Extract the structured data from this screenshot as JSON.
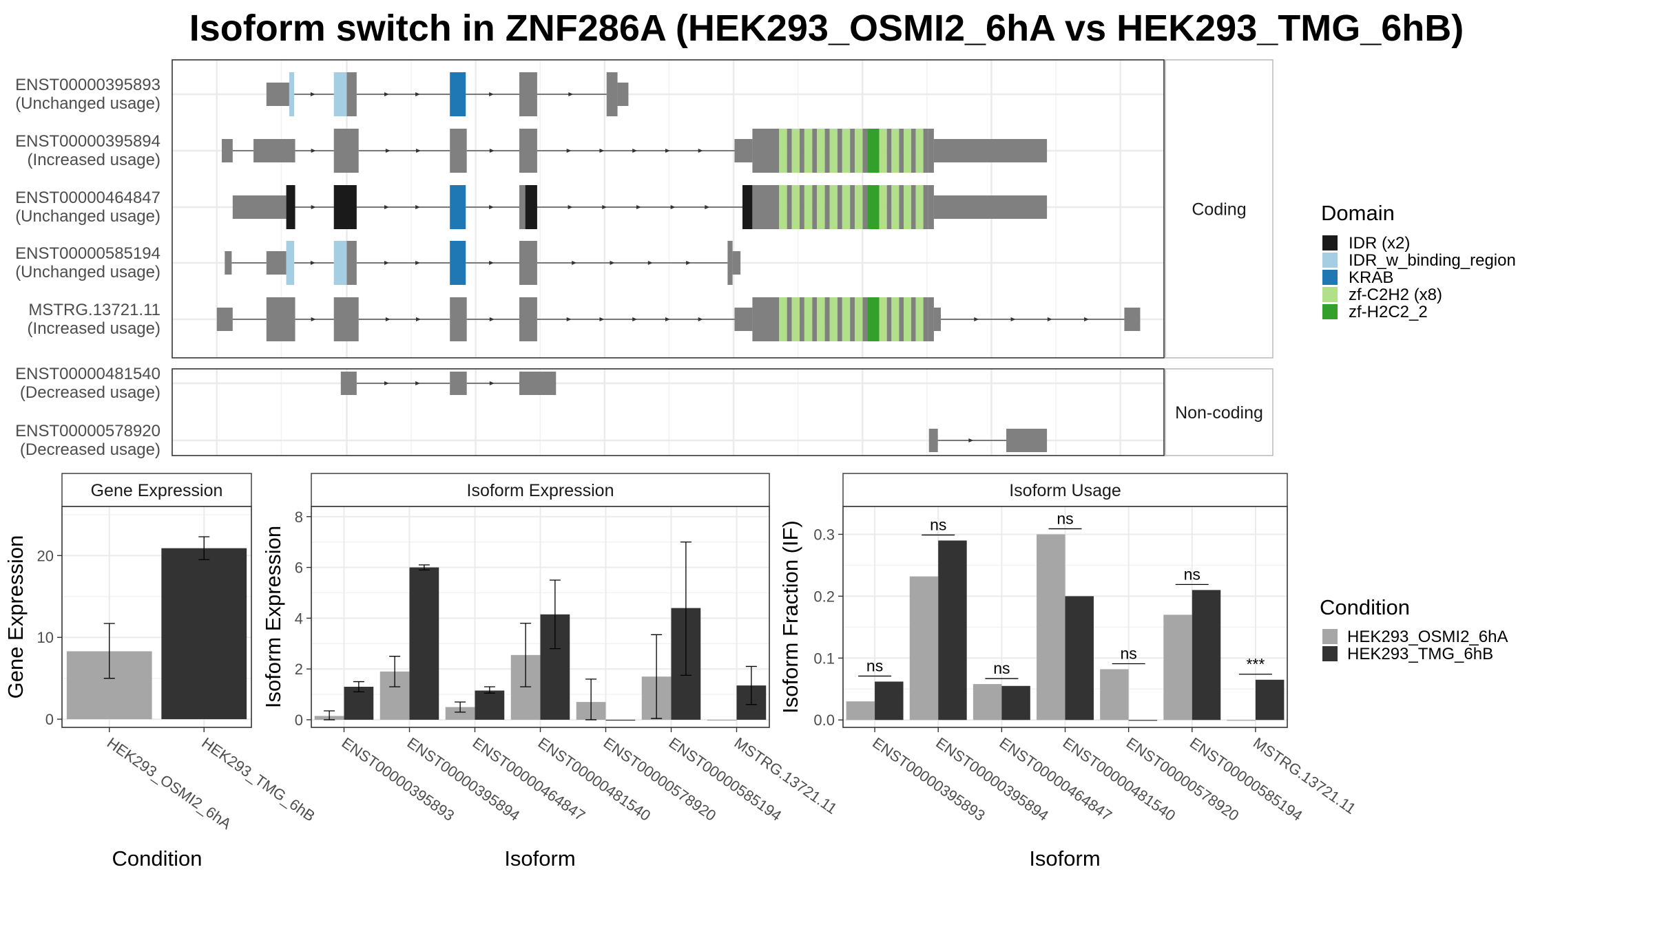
{
  "title": "Isoform switch in ZNF286A (HEK293_OSMI2_6hA vs HEK293_TMG_6hB)",
  "colors": {
    "exon": "#808080",
    "IDR": "#1a1a1a",
    "IDR_w_binding_region": "#a6cee3",
    "KRAB": "#1f78b4",
    "zf-C2H2": "#b2df8a",
    "zf-H2C2_2": "#33a02c",
    "cond1": "#a6a6a6",
    "cond2": "#333333"
  },
  "structure": {
    "groups": [
      {
        "label": "Coding",
        "rows": [
          0,
          1,
          2,
          3,
          4
        ]
      },
      {
        "label": "Non-coding",
        "rows": [
          5,
          6
        ]
      }
    ],
    "transcripts": [
      {
        "id": "ENST00000395893",
        "usage": "(Unchanged usage)",
        "exons": [
          [
            0.095,
            0.118,
            "nc"
          ],
          [
            0.118,
            0.123,
            "IDR_w_binding_region"
          ],
          [
            0.163,
            0.176,
            "IDR_w_binding_region"
          ],
          [
            0.176,
            0.186,
            "cds"
          ],
          [
            0.28,
            0.296,
            "KRAB"
          ],
          [
            0.35,
            0.368,
            "cds"
          ],
          [
            0.438,
            0.449,
            "cds"
          ],
          [
            0.449,
            0.46,
            "nc"
          ]
        ]
      },
      {
        "id": "ENST00000395894",
        "usage": "(Increased usage)",
        "exons": [
          [
            0.05,
            0.061,
            "nc"
          ],
          [
            0.082,
            0.124,
            "nc"
          ],
          [
            0.163,
            0.188,
            "cds"
          ],
          [
            0.28,
            0.297,
            "cds"
          ],
          [
            0.35,
            0.368,
            "cds"
          ],
          [
            0.567,
            0.585,
            "nc"
          ],
          [
            0.585,
            0.612,
            "cds"
          ],
          [
            0.612,
            0.701,
            "zf"
          ],
          [
            0.701,
            0.713,
            "zf-H2C2_2"
          ],
          [
            0.713,
            0.762,
            "zf"
          ],
          [
            0.762,
            0.768,
            "cds"
          ],
          [
            0.768,
            0.882,
            "nc"
          ]
        ]
      },
      {
        "id": "ENST00000464847",
        "usage": "(Unchanged usage)",
        "exons": [
          [
            0.061,
            0.115,
            "nc"
          ],
          [
            0.115,
            0.124,
            "IDR"
          ],
          [
            0.163,
            0.186,
            "IDR"
          ],
          [
            0.28,
            0.296,
            "KRAB"
          ],
          [
            0.35,
            0.356,
            "cds"
          ],
          [
            0.356,
            0.368,
            "IDR"
          ],
          [
            0.575,
            0.585,
            "IDR"
          ],
          [
            0.585,
            0.612,
            "cds"
          ],
          [
            0.612,
            0.701,
            "zf"
          ],
          [
            0.701,
            0.713,
            "zf-H2C2_2"
          ],
          [
            0.713,
            0.762,
            "zf"
          ],
          [
            0.762,
            0.768,
            "cds"
          ],
          [
            0.768,
            0.882,
            "nc"
          ]
        ]
      },
      {
        "id": "ENST00000585194",
        "usage": "(Unchanged usage)",
        "exons": [
          [
            0.053,
            0.06,
            "nc"
          ],
          [
            0.095,
            0.115,
            "nc"
          ],
          [
            0.115,
            0.123,
            "IDR_w_binding_region"
          ],
          [
            0.163,
            0.176,
            "IDR_w_binding_region"
          ],
          [
            0.176,
            0.186,
            "cds"
          ],
          [
            0.28,
            0.296,
            "KRAB"
          ],
          [
            0.35,
            0.368,
            "cds"
          ],
          [
            0.56,
            0.565,
            "cds"
          ],
          [
            0.565,
            0.573,
            "nc"
          ]
        ]
      },
      {
        "id": "MSTRG.13721.11",
        "usage": "(Increased usage)",
        "exons": [
          [
            0.045,
            0.061,
            "nc"
          ],
          [
            0.095,
            0.124,
            "cds"
          ],
          [
            0.163,
            0.188,
            "cds"
          ],
          [
            0.28,
            0.297,
            "cds"
          ],
          [
            0.35,
            0.368,
            "cds"
          ],
          [
            0.567,
            0.585,
            "nc"
          ],
          [
            0.585,
            0.612,
            "cds"
          ],
          [
            0.612,
            0.701,
            "zf"
          ],
          [
            0.701,
            0.713,
            "zf-H2C2_2"
          ],
          [
            0.713,
            0.762,
            "zf"
          ],
          [
            0.762,
            0.768,
            "cds"
          ],
          [
            0.768,
            0.775,
            "nc"
          ],
          [
            0.96,
            0.976,
            "nc"
          ]
        ]
      },
      {
        "id": "ENST00000481540",
        "usage": "(Decreased usage)",
        "exons": [
          [
            0.17,
            0.186,
            "nc"
          ],
          [
            0.28,
            0.297,
            "nc"
          ],
          [
            0.35,
            0.387,
            "nc"
          ]
        ]
      },
      {
        "id": "ENST00000578920",
        "usage": "(Decreased usage)",
        "exons": [
          [
            0.763,
            0.772,
            "nc"
          ],
          [
            0.841,
            0.882,
            "nc"
          ]
        ]
      }
    ]
  },
  "legend_domain": {
    "title": "Domain",
    "items": [
      {
        "label": "IDR (x2)",
        "key": "IDR"
      },
      {
        "label": "IDR_w_binding_region",
        "key": "IDR_w_binding_region"
      },
      {
        "label": "KRAB",
        "key": "KRAB"
      },
      {
        "label": "zf-C2H2 (x8)",
        "key": "zf-C2H2"
      },
      {
        "label": "zf-H2C2_2",
        "key": "zf-H2C2_2"
      }
    ]
  },
  "legend_condition": {
    "title": "Condition",
    "items": [
      {
        "label": "HEK293_OSMI2_6hA",
        "key": "cond1"
      },
      {
        "label": "HEK293_TMG_6hB",
        "key": "cond2"
      }
    ]
  },
  "chart_data": [
    {
      "type": "bar",
      "title": "Gene Expression",
      "xlabel": "Condition",
      "ylabel": "Gene Expression",
      "categories": [
        "HEK293_OSMI2_6hA",
        "HEK293_TMG_6hB"
      ],
      "values": [
        8.3,
        20.9
      ],
      "errors": [
        [
          5.0,
          11.7
        ],
        [
          19.5,
          22.3
        ]
      ],
      "ylim": [
        -1,
        26
      ],
      "yticks": [
        0,
        10,
        20
      ],
      "grid": true
    },
    {
      "type": "bar",
      "title": "Isoform Expression",
      "xlabel": "Isoform",
      "ylabel": "Isoform Expression",
      "categories": [
        "ENST00000395893",
        "ENST00000395894",
        "ENST00000464847",
        "ENST00000481540",
        "ENST00000578920",
        "ENST00000585194",
        "MSTRG.13721.11"
      ],
      "series": [
        {
          "name": "HEK293_OSMI2_6hA",
          "values": [
            0.15,
            1.9,
            0.5,
            2.55,
            0.7,
            1.7,
            0.0
          ],
          "errors": [
            [
              0.0,
              0.35
            ],
            [
              1.3,
              2.5
            ],
            [
              0.3,
              0.7
            ],
            [
              1.3,
              3.8
            ],
            [
              0.0,
              1.6
            ],
            [
              0.05,
              3.35
            ],
            null
          ]
        },
        {
          "name": "HEK293_TMG_6hB",
          "values": [
            1.3,
            6.0,
            1.15,
            4.15,
            0.0,
            4.4,
            1.35
          ],
          "errors": [
            [
              1.1,
              1.5
            ],
            [
              5.9,
              6.1
            ],
            [
              1.05,
              1.3
            ],
            [
              2.8,
              5.5
            ],
            null,
            [
              1.75,
              7.0
            ],
            [
              0.6,
              2.1
            ]
          ]
        }
      ],
      "ylim": [
        -0.3,
        8.4
      ],
      "yticks": [
        0,
        2,
        4,
        6,
        8
      ],
      "grid": true
    },
    {
      "type": "bar",
      "title": "Isoform Usage",
      "xlabel": "Isoform",
      "ylabel": "Isoform Fraction (IF)",
      "categories": [
        "ENST00000395893",
        "ENST00000395894",
        "ENST00000464847",
        "ENST00000481540",
        "ENST00000578920",
        "ENST00000585194",
        "MSTRG.13721.11"
      ],
      "series": [
        {
          "name": "HEK293_OSMI2_6hA",
          "values": [
            0.03,
            0.232,
            0.058,
            0.3,
            0.082,
            0.17,
            0.0
          ]
        },
        {
          "name": "HEK293_TMG_6hB",
          "values": [
            0.062,
            0.29,
            0.055,
            0.2,
            0.0,
            0.21,
            0.065
          ]
        }
      ],
      "significance": [
        "ns",
        "ns",
        "ns",
        "ns",
        "ns",
        "ns",
        "***"
      ],
      "ylim": [
        -0.012,
        0.345
      ],
      "yticks": [
        0.0,
        0.1,
        0.2,
        0.3
      ],
      "ytick_labels": [
        "0.0",
        "0.1",
        "0.2",
        "0.3"
      ],
      "grid": true
    }
  ]
}
